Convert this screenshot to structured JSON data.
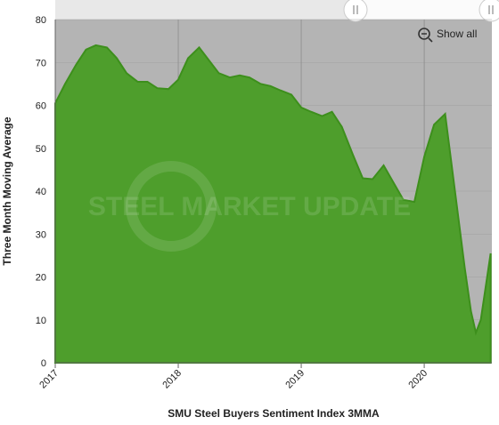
{
  "chart_data": {
    "type": "area",
    "xlabel": "SMU Steel Buyers Sentiment Index 3MMA",
    "ylabel": "Three Month Moving Average",
    "watermark": "STEEL MARKET UPDATE",
    "button": "Show all",
    "color": "#4e9e2c",
    "x": [
      2017.0,
      2017.08,
      2017.17,
      2017.25,
      2017.33,
      2017.42,
      2017.5,
      2017.58,
      2017.67,
      2017.75,
      2017.83,
      2017.92,
      2018.0,
      2018.08,
      2018.17,
      2018.25,
      2018.33,
      2018.42,
      2018.5,
      2018.58,
      2018.67,
      2018.75,
      2018.83,
      2018.92,
      2019.0,
      2019.08,
      2019.17,
      2019.25,
      2019.33,
      2019.42,
      2019.5,
      2019.58,
      2019.67,
      2019.75,
      2019.83,
      2019.92,
      2020.0,
      2020.08,
      2020.17,
      2020.25,
      2020.33,
      2020.38,
      2020.42,
      2020.46,
      2020.54
    ],
    "values": [
      60.5,
      65,
      69.5,
      73,
      74,
      73.5,
      71,
      67.5,
      65.5,
      65.5,
      64,
      63.8,
      66,
      71,
      73.5,
      70.5,
      67.5,
      66.5,
      67,
      66.5,
      65,
      64.5,
      63.5,
      62.5,
      59.5,
      58.5,
      57.5,
      58.5,
      55,
      48.5,
      43,
      42.8,
      46,
      42,
      38,
      37.5,
      48,
      55.5,
      58,
      40,
      22,
      12,
      7,
      10,
      25.5
    ],
    "xlim": [
      2017.0,
      2020.55
    ],
    "xticks": [
      2017,
      2018,
      2019,
      2020
    ],
    "ylim": [
      0,
      80
    ],
    "yticks": [
      0,
      10,
      20,
      30,
      40,
      50,
      60,
      70,
      80
    ],
    "grid": true
  }
}
